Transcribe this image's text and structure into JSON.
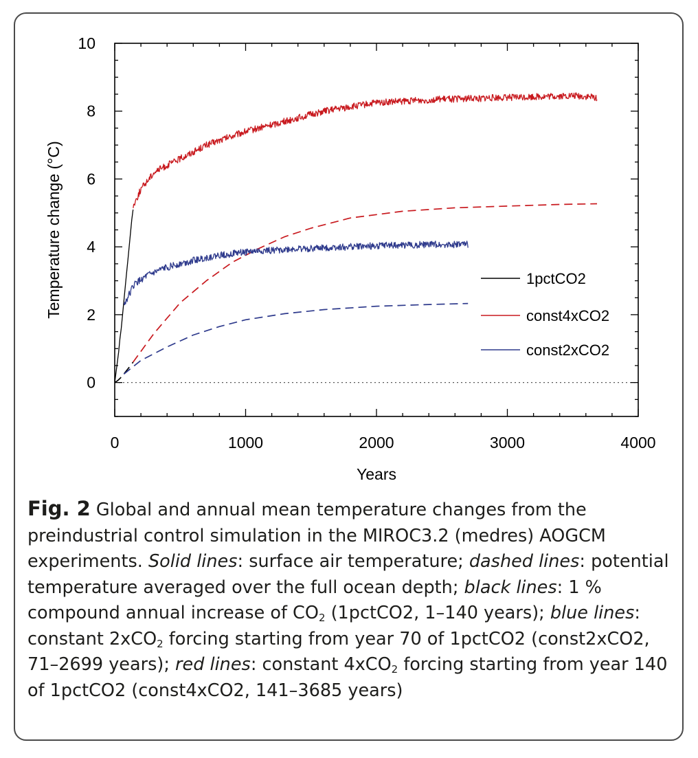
{
  "chart_data": {
    "type": "line",
    "xlabel": "Years",
    "ylabel": "Temperature change (°C)",
    "xlim": [
      0,
      4000
    ],
    "ylim": [
      -1,
      10
    ],
    "xticks": [
      0,
      1000,
      2000,
      3000,
      4000
    ],
    "xtick_labels": [
      "0",
      "1000",
      "2000",
      "3000",
      "4000"
    ],
    "yticks": [
      0,
      2,
      4,
      6,
      8,
      10
    ],
    "ytick_labels": [
      "0",
      "2",
      "4",
      "6",
      "8",
      "10"
    ],
    "grid": false,
    "zero_line": true,
    "legend_position": "right",
    "legend": [
      {
        "label": "1pctCO2",
        "color": "#000000"
      },
      {
        "label": "const4xCO2",
        "color": "#c8191e"
      },
      {
        "label": "const2xCO2",
        "color": "#2e3a8c"
      }
    ],
    "series": [
      {
        "name": "1pctCO2",
        "style": "solid",
        "color": "#000000",
        "x": [
          0,
          10,
          20,
          30,
          40,
          50,
          60,
          70,
          80,
          90,
          100,
          110,
          120,
          130,
          140
        ],
        "y": [
          0.0,
          0.3,
          0.6,
          0.9,
          1.3,
          1.6,
          2.0,
          2.4,
          2.8,
          3.2,
          3.6,
          4.0,
          4.4,
          4.8,
          5.1
        ]
      },
      {
        "name": "1pctCO2",
        "style": "dashed",
        "color": "#000000",
        "x": [
          0,
          20,
          40,
          60,
          80,
          100,
          120,
          140
        ],
        "y": [
          0.0,
          0.05,
          0.12,
          0.2,
          0.3,
          0.4,
          0.5,
          0.6
        ]
      },
      {
        "name": "const4xCO2",
        "style": "solid",
        "color": "#c8191e",
        "x": [
          141,
          200,
          300,
          400,
          500,
          700,
          1000,
          1300,
          1600,
          2000,
          2500,
          3000,
          3500,
          3685
        ],
        "y": [
          5.2,
          5.7,
          6.2,
          6.4,
          6.6,
          7.0,
          7.4,
          7.7,
          8.0,
          8.25,
          8.35,
          8.4,
          8.45,
          8.4
        ],
        "noise": 0.1
      },
      {
        "name": "const4xCO2",
        "style": "dashed",
        "color": "#c8191e",
        "x": [
          140,
          300,
          500,
          700,
          900,
          1100,
          1300,
          1500,
          1800,
          2200,
          2600,
          3000,
          3400,
          3685
        ],
        "y": [
          0.6,
          1.45,
          2.35,
          3.0,
          3.55,
          3.95,
          4.3,
          4.55,
          4.85,
          5.05,
          5.15,
          5.2,
          5.25,
          5.27
        ]
      },
      {
        "name": "const2xCO2",
        "style": "solid",
        "color": "#2e3a8c",
        "x": [
          71,
          150,
          250,
          400,
          600,
          800,
          1000,
          1300,
          1600,
          2000,
          2400,
          2699
        ],
        "y": [
          2.3,
          2.9,
          3.15,
          3.4,
          3.6,
          3.75,
          3.85,
          3.92,
          3.97,
          4.03,
          4.07,
          4.07
        ],
        "noise": 0.1
      },
      {
        "name": "const2xCO2",
        "style": "dashed",
        "color": "#2e3a8c",
        "x": [
          70,
          200,
          400,
          600,
          800,
          1000,
          1300,
          1600,
          2000,
          2400,
          2699
        ],
        "y": [
          0.25,
          0.65,
          1.05,
          1.4,
          1.65,
          1.85,
          2.03,
          2.15,
          2.25,
          2.3,
          2.33
        ]
      }
    ]
  },
  "caption": {
    "fig_label": "Fig. 2",
    "p1": " Global and annual mean temperature changes from the preindustrial control simulation in the MIROC3.2 (medres) AOGCM experiments. ",
    "solid_label": "Solid lines",
    "p2": ": surface air temperature; ",
    "dashed_label": "dashed lines",
    "p3": ": potential temperature averaged over the full ocean depth; ",
    "black_label": "black lines",
    "p4": ": 1 % compound annual increase of CO",
    "sub1": "2",
    "p5": " (1pctCO2, 1–140 years); ",
    "blue_label": "blue lines",
    "p6": ": constant 2xCO",
    "sub2": "2",
    "p7": " forcing starting from year 70 of 1pctCO2 (const2xCO2, 71–2699 years); ",
    "red_label": "red lines",
    "p8": ": constant 4xCO",
    "sub3": "2",
    "p9": " forcing starting from year 140 of 1pctCO2 (const4xCO2, 141–3685 years)"
  }
}
